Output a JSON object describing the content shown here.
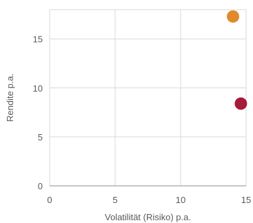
{
  "chart_data": {
    "type": "scatter",
    "title": "",
    "xlabel": "Volatilität (Risiko) p.a.",
    "ylabel": "Rendite p.a.",
    "xlim": [
      0,
      15
    ],
    "ylim": [
      0,
      18
    ],
    "xticks": [
      0,
      5,
      10,
      15
    ],
    "yticks": [
      0,
      5,
      10,
      15
    ],
    "xtick_labels": [
      "0",
      "5",
      "10",
      "15"
    ],
    "ytick_labels": [
      "0",
      "5",
      "10",
      "15"
    ],
    "grid": true,
    "legend": "none",
    "points": [
      {
        "x": 14.0,
        "y": 17.3,
        "color": "#e08a2c"
      },
      {
        "x": 14.6,
        "y": 8.4,
        "color": "#a51c3a"
      }
    ]
  }
}
